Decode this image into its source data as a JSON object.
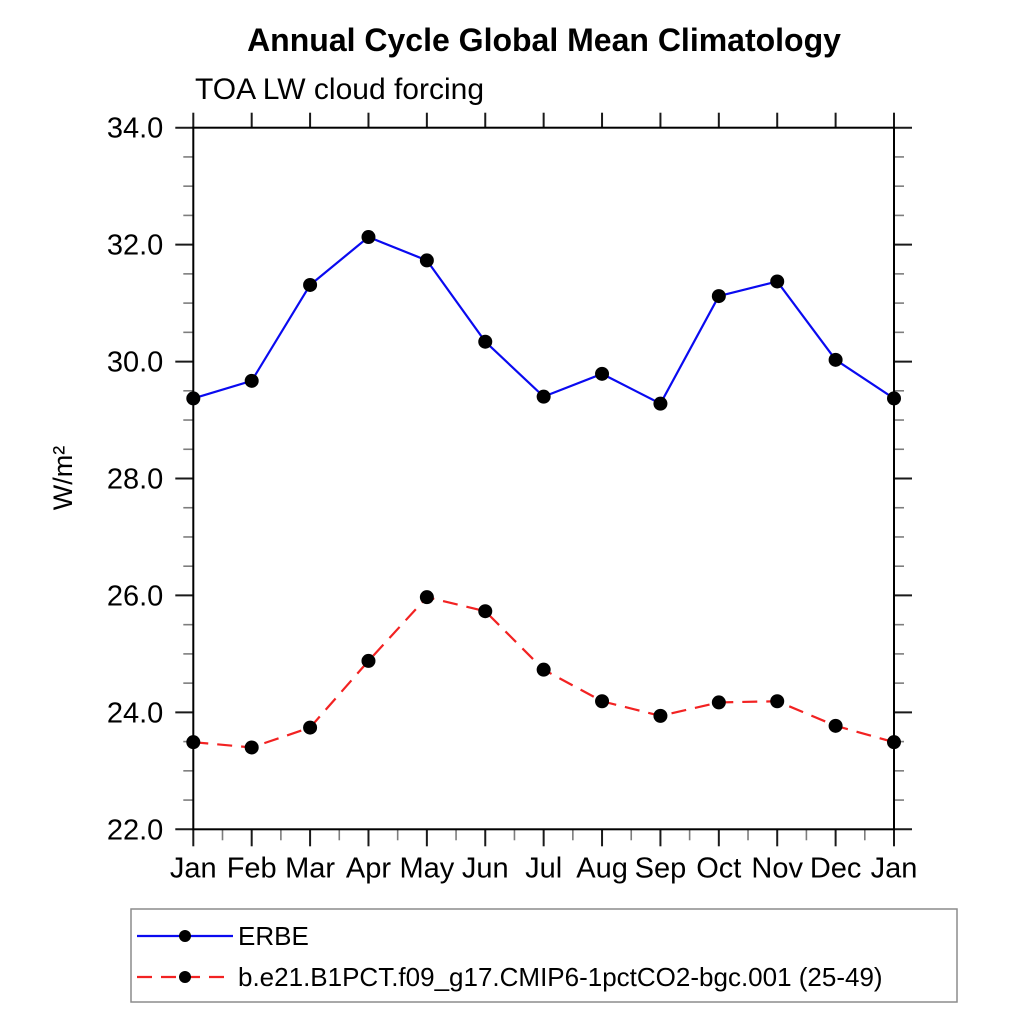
{
  "header": {
    "title": "Annual Cycle Global Mean Climatology",
    "subtitle": "TOA LW cloud forcing"
  },
  "chart_data": {
    "type": "line",
    "title": "Annual Cycle Global Mean Climatology",
    "subtitle": "TOA LW cloud forcing",
    "xlabel": "",
    "ylabel": "W/m²",
    "categories": [
      "Jan",
      "Feb",
      "Mar",
      "Apr",
      "May",
      "Jun",
      "Jul",
      "Aug",
      "Sep",
      "Oct",
      "Nov",
      "Dec",
      "Jan"
    ],
    "series": [
      {
        "name": "ERBE",
        "color": "#0a0af0",
        "line_style": "solid",
        "marker": "filled-circle",
        "marker_color": "#000000",
        "values": [
          29.37,
          29.67,
          31.31,
          32.13,
          31.73,
          30.34,
          29.4,
          29.79,
          29.28,
          31.12,
          31.37,
          30.03,
          29.37
        ]
      },
      {
        "name": "b.e21.B1PCT.f09_g17.CMIP6-1pctCO2-bgc.001 (25-49)",
        "color": "#f22222",
        "line_style": "dashed",
        "marker": "filled-circle",
        "marker_color": "#000000",
        "values": [
          23.49,
          23.4,
          23.74,
          24.88,
          25.97,
          25.73,
          24.73,
          24.19,
          23.94,
          24.17,
          24.19,
          23.77,
          23.49
        ]
      }
    ],
    "ylim": [
      22.0,
      34.0
    ],
    "ytick_step": 2.0,
    "ytick_minor_step": 0.5,
    "ytick_label_format": "one-decimal",
    "xtick_minor": "half-month (bottom axis only)",
    "grid": false,
    "frame": "full box with outward ticks on all four sides",
    "legend_position": "bottom-left boxed, below plot"
  }
}
